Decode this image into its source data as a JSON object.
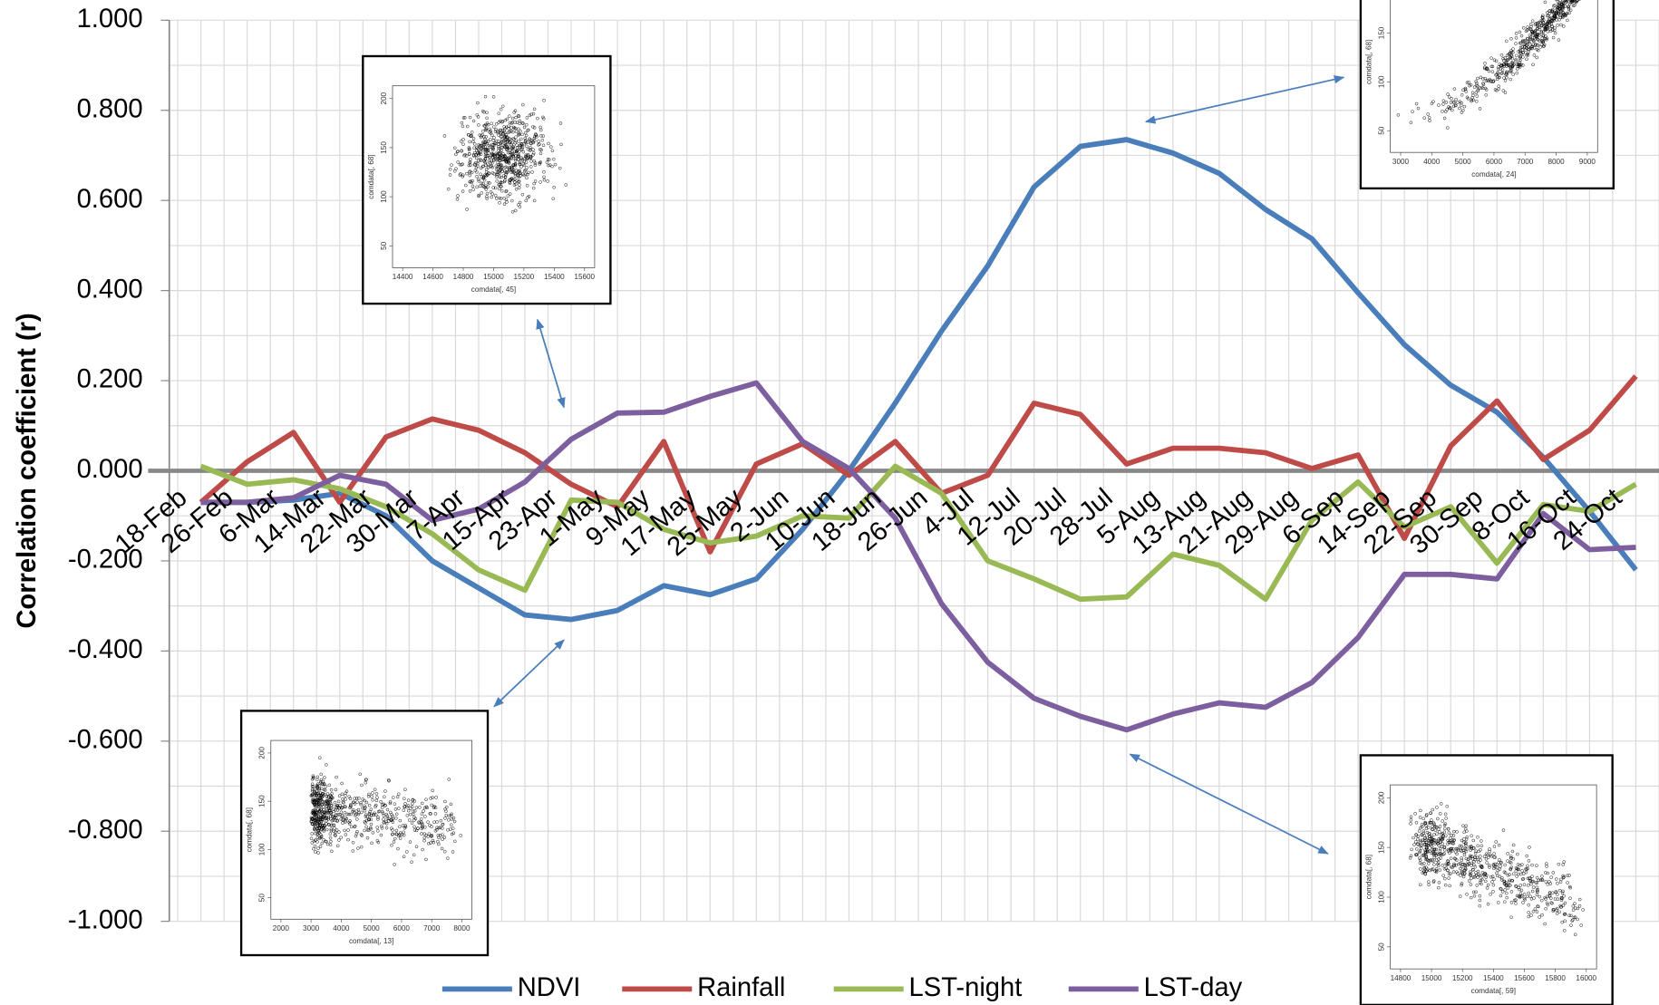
{
  "chart_data": {
    "type": "line",
    "y_label": "Correlation coefficient (r)",
    "categories": [
      "18-Feb",
      "26-Feb",
      "6-Mar",
      "14-Mar",
      "22-Mar",
      "30-Mar",
      "7-Apr",
      "15-Apr",
      "23-Apr",
      "1-May",
      "9-May",
      "17-May",
      "25-May",
      "2-Jun",
      "10-Jun",
      "18-Jun",
      "26-Jun",
      "4-Jul",
      "12-Jul",
      "20-Jul",
      "28-Jul",
      "5-Aug",
      "13-Aug",
      "21-Aug",
      "29-Aug",
      "6-Sep",
      "14-Sep",
      "22-Sep",
      "30-Sep",
      "8-Oct",
      "16-Oct",
      "24-Oct"
    ],
    "ylim": [
      -1,
      1
    ],
    "yticks": [
      {
        "value": -1,
        "label": "-1.000"
      },
      {
        "value": -0.8,
        "label": "-0.800"
      },
      {
        "value": -0.6,
        "label": "-0.600"
      },
      {
        "value": -0.4,
        "label": "-0.400"
      },
      {
        "value": -0.2,
        "label": "-0.200"
      },
      {
        "value": 0,
        "label": "0.000"
      },
      {
        "value": 0.2,
        "label": "0.200"
      },
      {
        "value": 0.4,
        "label": "0.400"
      },
      {
        "value": 0.6,
        "label": "0.600"
      },
      {
        "value": 0.8,
        "label": "0.800"
      },
      {
        "value": 1,
        "label": "1.000"
      }
    ],
    "grid": true,
    "legend": "bottom",
    "series": [
      {
        "name": "NDVI",
        "color": "#4a7ebb",
        "values": [
          -0.07,
          -0.07,
          -0.065,
          -0.05,
          -0.1,
          -0.2,
          -0.26,
          -0.32,
          -0.33,
          -0.31,
          -0.255,
          -0.275,
          -0.24,
          -0.13,
          0.0,
          0.15,
          0.31,
          0.455,
          0.63,
          0.72,
          0.735,
          0.705,
          0.66,
          0.58,
          0.515,
          0.395,
          0.28,
          0.19,
          0.13,
          0.03,
          -0.09,
          -0.22
        ]
      },
      {
        "name": "Rainfall",
        "color": "#be4b48",
        "values": [
          -0.07,
          0.02,
          0.085,
          -0.07,
          0.075,
          0.115,
          0.09,
          0.04,
          -0.03,
          -0.08,
          0.065,
          -0.18,
          0.015,
          0.06,
          -0.01,
          0.065,
          -0.05,
          -0.01,
          0.15,
          0.125,
          0.015,
          0.05,
          0.05,
          0.04,
          0.005,
          0.035,
          -0.15,
          0.055,
          0.155,
          0.025,
          0.09,
          0.21
        ]
      },
      {
        "name": "LST-night",
        "color": "#98b954",
        "values": [
          0.01,
          -0.03,
          -0.02,
          -0.04,
          -0.08,
          -0.14,
          -0.22,
          -0.265,
          -0.065,
          -0.07,
          -0.13,
          -0.16,
          -0.145,
          -0.1,
          -0.105,
          0.01,
          -0.05,
          -0.2,
          -0.24,
          -0.285,
          -0.28,
          -0.185,
          -0.21,
          -0.285,
          -0.11,
          -0.025,
          -0.125,
          -0.08,
          -0.205,
          -0.075,
          -0.09,
          -0.03
        ]
      },
      {
        "name": "LST-day",
        "color": "#7d5fa0",
        "values": [
          -0.07,
          -0.07,
          -0.06,
          -0.01,
          -0.03,
          -0.11,
          -0.085,
          -0.025,
          0.07,
          0.128,
          0.13,
          0.165,
          0.195,
          0.065,
          0.005,
          -0.105,
          -0.295,
          -0.425,
          -0.505,
          -0.545,
          -0.575,
          -0.54,
          -0.515,
          -0.525,
          -0.47,
          -0.37,
          -0.23,
          -0.23,
          -0.24,
          -0.095,
          -0.175,
          -0.17
        ]
      }
    ]
  },
  "insets": [
    {
      "x_label": "comdata[, 45]",
      "y_label": "comdata[, 68]",
      "xticks": [
        "14400",
        "14600",
        "14800",
        "15000",
        "15200",
        "15400",
        "15600"
      ],
      "yticks": [
        "50",
        "100",
        "150",
        "200"
      ]
    },
    {
      "x_label": "comdata[, 24]",
      "y_label": "comdata[, 68]",
      "xticks": [
        "3000",
        "4000",
        "5000",
        "6000",
        "7000",
        "8000",
        "9000"
      ],
      "yticks": [
        "50",
        "100",
        "150"
      ]
    },
    {
      "x_label": "comdata[, 13]",
      "y_label": "comdata[, 68]",
      "xticks": [
        "2000",
        "3000",
        "4000",
        "5000",
        "6000",
        "7000",
        "8000"
      ],
      "yticks": [
        "50",
        "100",
        "150",
        "200"
      ]
    },
    {
      "x_label": "comdata[, 59]",
      "y_label": "comdata[, 68]",
      "xticks": [
        "14800",
        "15000",
        "15200",
        "15400",
        "15600",
        "15800",
        "16000"
      ],
      "yticks": [
        "50",
        "100",
        "150",
        "200"
      ]
    }
  ]
}
